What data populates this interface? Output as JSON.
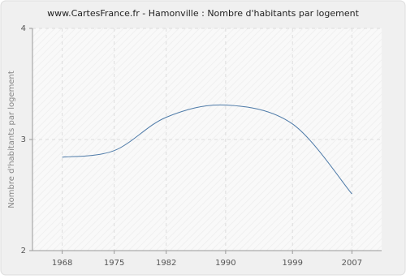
{
  "chart_data": {
    "type": "line",
    "title": "www.CartesFrance.fr - Hamonville : Nombre d'habitants par logement",
    "y_label": "Nombre d'habitants par logement",
    "x": [
      1968,
      1975,
      1982,
      1990,
      1999,
      2007
    ],
    "series": [
      {
        "name": "Nombre d'habitants par logement",
        "color": "#4d7aa8",
        "values": [
          2.84,
          2.9,
          3.2,
          3.31,
          3.14,
          2.51
        ]
      }
    ],
    "xlim": [
      1964,
      2011
    ],
    "xticks": [
      1968,
      1975,
      1982,
      1990,
      1999,
      2007
    ],
    "ylim": [
      2,
      4
    ],
    "yticks": [
      2,
      3,
      4
    ],
    "grid": true
  }
}
